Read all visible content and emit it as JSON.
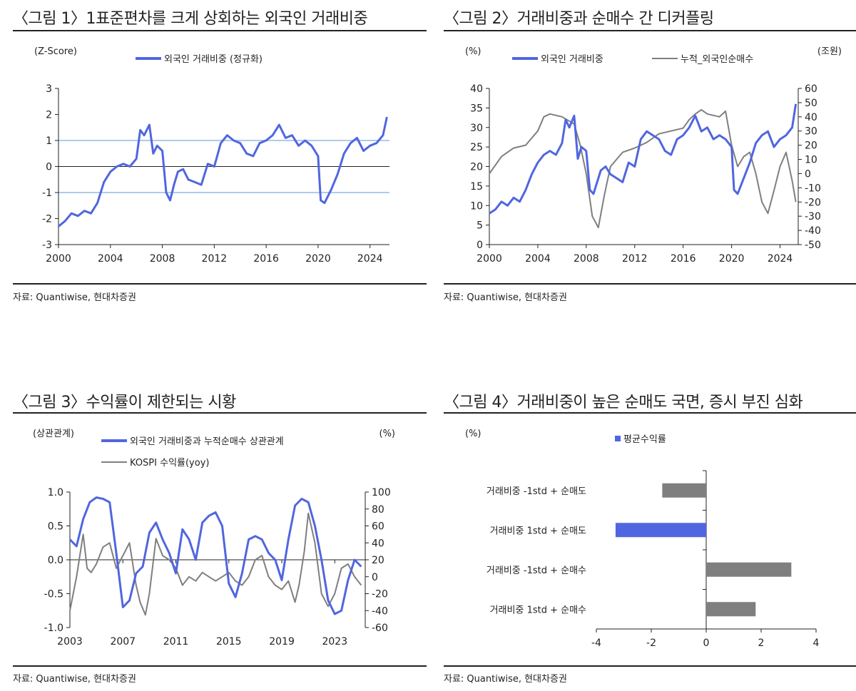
{
  "colors": {
    "blue": "#5066e0",
    "gray": "#7f7f7f",
    "ref": "#aecbef",
    "axis": "#222222"
  },
  "source": "자료: Quantiwise, 현대차증권",
  "charts": [
    {
      "title": "〈그림 1〉1표준편차를 크게 상회하는 외국인 거래비중",
      "left_unit": "(Z-Score)",
      "legend": [
        {
          "label": "외국인 거래비중 (정규화)",
          "color": "#5066e0"
        }
      ]
    },
    {
      "title": "〈그림 2〉거래비중과 순매수 간 디커플링",
      "left_unit": "(%)",
      "right_unit": "(조원)",
      "legend": [
        {
          "label": "외국인 거래비중",
          "color": "#5066e0"
        },
        {
          "label": "누적_외국인순매수",
          "color": "#7f7f7f"
        }
      ]
    },
    {
      "title": "〈그림 3〉수익률이 제한되는 시황",
      "left_unit": "(상관관계)",
      "right_unit": "(%)",
      "legend": [
        {
          "label": "외국인 거래비중과 누적순매수 상관관계",
          "color": "#5066e0"
        },
        {
          "label": "KOSPI 수익률(yoy)",
          "color": "#7f7f7f"
        }
      ]
    },
    {
      "title": "〈그림 4〉거래비중이 높은 순매도 국면, 증시 부진 심화",
      "left_unit": "(%)",
      "legend": [
        {
          "label": "평균수익률",
          "color": "#5066e0"
        }
      ]
    }
  ],
  "chart_data": [
    {
      "type": "line",
      "x_domain": [
        2000,
        2025.5
      ],
      "x_ticks": [
        "2000",
        "2004",
        "2008",
        "2012",
        "2016",
        "2020",
        "2024"
      ],
      "y_ticks": [
        "3",
        "2",
        "1",
        "0",
        "-1",
        "-2",
        "-3"
      ],
      "ylim": [
        -3,
        3
      ],
      "reference_lines": [
        1,
        -1
      ],
      "series": [
        {
          "name": "외국인 거래비중 (정규화)",
          "color": "#5066e0",
          "x": [
            2000,
            2000.5,
            2001,
            2001.5,
            2002,
            2002.5,
            2003,
            2003.5,
            2004,
            2004.5,
            2005,
            2005.5,
            2006,
            2006.3,
            2006.6,
            2007,
            2007.3,
            2007.6,
            2008,
            2008.3,
            2008.6,
            2008.9,
            2009.2,
            2009.6,
            2010,
            2010.5,
            2011,
            2011.5,
            2012,
            2012.5,
            2013,
            2013.5,
            2014,
            2014.5,
            2015,
            2015.5,
            2016,
            2016.5,
            2017,
            2017.5,
            2018,
            2018.5,
            2019,
            2019.5,
            2020,
            2020.2,
            2020.5,
            2021,
            2021.5,
            2022,
            2022.5,
            2023,
            2023.5,
            2024,
            2024.5,
            2025,
            2025.3
          ],
          "y": [
            -2.3,
            -2.1,
            -1.8,
            -1.9,
            -1.7,
            -1.8,
            -1.4,
            -0.6,
            -0.2,
            0.0,
            0.1,
            0.0,
            0.3,
            1.4,
            1.2,
            1.6,
            0.5,
            0.8,
            0.6,
            -1.0,
            -1.3,
            -0.7,
            -0.2,
            -0.1,
            -0.5,
            -0.6,
            -0.7,
            0.1,
            0.0,
            0.9,
            1.2,
            1.0,
            0.9,
            0.5,
            0.4,
            0.9,
            1.0,
            1.2,
            1.6,
            1.1,
            1.2,
            0.8,
            1.0,
            0.8,
            0.4,
            -1.3,
            -1.4,
            -0.9,
            -0.3,
            0.5,
            0.9,
            1.1,
            0.6,
            0.8,
            0.9,
            1.2,
            1.9
          ]
        }
      ]
    },
    {
      "type": "line",
      "x_domain": [
        2000,
        2025.5
      ],
      "x_ticks": [
        "2000",
        "2004",
        "2008",
        "2012",
        "2016",
        "2020",
        "2024"
      ],
      "y_ticks": [
        "40",
        "35",
        "30",
        "25",
        "20",
        "15",
        "10",
        "5",
        "0"
      ],
      "y2_ticks": [
        "60",
        "50",
        "40",
        "30",
        "20",
        "10",
        "0",
        "-10",
        "-20",
        "-30",
        "-40",
        "-50"
      ],
      "ylim": [
        0,
        40
      ],
      "y2lim": [
        -50,
        60
      ],
      "series": [
        {
          "name": "외국인 거래비중",
          "axis": "left",
          "color": "#5066e0",
          "x": [
            2000,
            2000.5,
            2001,
            2001.5,
            2002,
            2002.5,
            2003,
            2003.5,
            2004,
            2004.5,
            2005,
            2005.5,
            2006,
            2006.3,
            2006.6,
            2007,
            2007.3,
            2007.6,
            2008,
            2008.3,
            2008.6,
            2008.9,
            2009.2,
            2009.6,
            2010,
            2010.5,
            2011,
            2011.5,
            2012,
            2012.5,
            2013,
            2013.5,
            2014,
            2014.5,
            2015,
            2015.5,
            2016,
            2016.5,
            2017,
            2017.5,
            2018,
            2018.5,
            2019,
            2019.5,
            2020,
            2020.2,
            2020.5,
            2021,
            2021.5,
            2022,
            2022.5,
            2023,
            2023.5,
            2024,
            2024.5,
            2025,
            2025.3
          ],
          "y": [
            8,
            9,
            11,
            10,
            12,
            11,
            14,
            18,
            21,
            23,
            24,
            23,
            26,
            32,
            30,
            33,
            22,
            25,
            24,
            14,
            13,
            16,
            19,
            20,
            18,
            17,
            16,
            21,
            20,
            27,
            29,
            28,
            27,
            24,
            23,
            27,
            28,
            30,
            33,
            29,
            30,
            27,
            28,
            27,
            25,
            14,
            13,
            17,
            21,
            26,
            28,
            29,
            25,
            27,
            28,
            30,
            36
          ]
        },
        {
          "name": "누적_외국인순매수",
          "axis": "right",
          "color": "#7f7f7f",
          "x": [
            2000,
            2001,
            2002,
            2003,
            2004,
            2004.5,
            2005,
            2006,
            2007,
            2007.5,
            2008,
            2008.5,
            2009,
            2009.5,
            2010,
            2011,
            2012,
            2013,
            2014,
            2015,
            2016,
            2016.5,
            2017,
            2017.5,
            2018,
            2019,
            2019.5,
            2020,
            2020.5,
            2021,
            2021.5,
            2022,
            2022.5,
            2023,
            2023.5,
            2024,
            2024.5,
            2025,
            2025.3
          ],
          "y": [
            0,
            12,
            18,
            20,
            30,
            40,
            42,
            40,
            35,
            20,
            0,
            -30,
            -38,
            -15,
            5,
            15,
            18,
            22,
            28,
            30,
            32,
            38,
            42,
            45,
            42,
            40,
            44,
            20,
            5,
            12,
            15,
            0,
            -20,
            -28,
            -12,
            5,
            15,
            -5,
            -20
          ]
        }
      ]
    },
    {
      "type": "line",
      "x_domain": [
        2003,
        2025.3
      ],
      "x_ticks": [
        "2003",
        "2007",
        "2011",
        "2015",
        "2019",
        "2023"
      ],
      "y_ticks": [
        "1.0",
        "0.5",
        "0.0",
        "-0.5",
        "-1.0"
      ],
      "y2_ticks": [
        "100",
        "80",
        "60",
        "40",
        "20",
        "0",
        "-20",
        "-40",
        "-60"
      ],
      "ylim": [
        -1.0,
        1.0
      ],
      "y2lim": [
        -60,
        100
      ],
      "series": [
        {
          "name": "외국인 거래비중과 누적순매수 상관관계",
          "axis": "left",
          "color": "#5066e0",
          "x": [
            2003,
            2003.5,
            2004,
            2004.5,
            2005,
            2005.5,
            2006,
            2006.5,
            2007,
            2007.5,
            2008,
            2008.5,
            2009,
            2009.5,
            2010,
            2010.5,
            2011,
            2011.5,
            2012,
            2012.5,
            2013,
            2013.5,
            2014,
            2014.5,
            2015,
            2015.5,
            2016,
            2016.5,
            2017,
            2017.5,
            2018,
            2018.5,
            2019,
            2019.5,
            2020,
            2020.5,
            2021,
            2021.5,
            2022,
            2022.5,
            2023,
            2023.5,
            2024,
            2024.5,
            2025
          ],
          "y": [
            0.3,
            0.2,
            0.6,
            0.85,
            0.92,
            0.9,
            0.85,
            0.1,
            -0.7,
            -0.6,
            -0.2,
            -0.1,
            0.4,
            0.55,
            0.3,
            0.1,
            -0.2,
            0.45,
            0.3,
            0.0,
            0.55,
            0.65,
            0.7,
            0.5,
            -0.35,
            -0.55,
            -0.2,
            0.3,
            0.35,
            0.3,
            0.1,
            0.0,
            -0.3,
            0.3,
            0.8,
            0.9,
            0.85,
            0.5,
            0.0,
            -0.6,
            -0.8,
            -0.75,
            -0.3,
            0.0,
            -0.1
          ]
        },
        {
          "name": "KOSPI 수익률(yoy)",
          "axis": "right",
          "color": "#7f7f7f",
          "x": [
            2003,
            2003.5,
            2004,
            2004.3,
            2004.6,
            2005,
            2005.5,
            2006,
            2006.5,
            2007,
            2007.5,
            2008,
            2008.3,
            2008.7,
            2009,
            2009.5,
            2010,
            2010.5,
            2011,
            2011.5,
            2012,
            2012.5,
            2013,
            2013.5,
            2014,
            2014.5,
            2015,
            2015.5,
            2016,
            2016.5,
            2017,
            2017.5,
            2018,
            2018.5,
            2019,
            2019.5,
            2020,
            2020.3,
            2020.7,
            2021,
            2021.5,
            2022,
            2022.5,
            2023,
            2023.5,
            2024,
            2024.5,
            2025
          ],
          "y": [
            -40,
            0,
            50,
            10,
            5,
            15,
            35,
            40,
            10,
            25,
            40,
            -10,
            -30,
            -45,
            -20,
            45,
            25,
            20,
            10,
            -10,
            0,
            -5,
            5,
            0,
            -5,
            0,
            5,
            -5,
            -10,
            0,
            20,
            25,
            0,
            -10,
            -15,
            -5,
            -30,
            -10,
            30,
            75,
            40,
            -20,
            -35,
            -20,
            10,
            15,
            0,
            -10
          ]
        }
      ]
    },
    {
      "type": "bar",
      "orientation": "horizontal",
      "categories": [
        "거래비중 -1std + 순매도",
        "거래비중 1std + 순매도",
        "거래비중 -1std + 순매수",
        "거래비중 1std + 순매수"
      ],
      "values": [
        -1.6,
        -3.3,
        3.1,
        1.8
      ],
      "bar_colors": [
        "#7f7f7f",
        "#5066e0",
        "#7f7f7f",
        "#7f7f7f"
      ],
      "x_ticks": [
        "-4",
        "-2",
        "0",
        "2",
        "4"
      ],
      "xlim": [
        -4,
        4
      ],
      "series_name": "평균수익률"
    }
  ]
}
